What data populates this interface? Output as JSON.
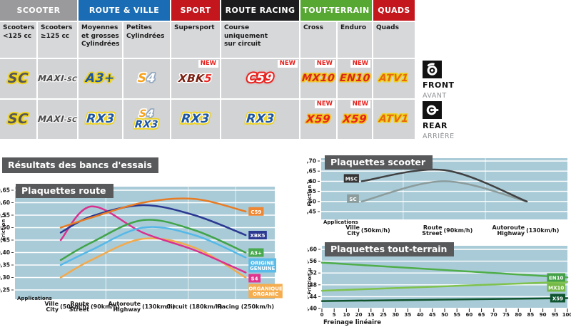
{
  "results_title": "Résultats des bancs d'essais",
  "colors": {
    "chart_bg": "#a9cbd7",
    "banner": "#58595b",
    "cell": "#d2d3d5",
    "subcell": "#d7d8da",
    "new_red": "#e8211d"
  },
  "table": {
    "categories": [
      {
        "label": "SCOOTER",
        "bg": "#9a9a9c",
        "span": 2
      },
      {
        "label": "ROUTE & VILLE",
        "bg": "#1a6cb4",
        "span": 2
      },
      {
        "label": "SPORT",
        "bg": "#c3161d",
        "span": 1
      },
      {
        "label": "ROUTE RACING",
        "bg": "#1c1c1e",
        "span": 1
      },
      {
        "label": "TOUT-TERRAIN",
        "bg": "#57a733",
        "span": 2
      },
      {
        "label": "QUADS",
        "bg": "#c3161d",
        "span": 1
      }
    ],
    "subheaders": [
      "Scooters\n<125 cc",
      "Scooters\n≥125 cc",
      "Moyennes\net grosses\nCylindrées",
      "Petites\nCylindrées",
      "Supersport",
      "Course\nuniquement\nsur circuit",
      "Cross",
      "Enduro",
      "Quads"
    ],
    "new_label": "NEW",
    "front_row": [
      {
        "badges": [
          {
            "text": "SC",
            "style": "b-sc"
          }
        ]
      },
      {
        "badges": [
          {
            "text": "MAXI-SC",
            "style": "b-maxisc",
            "parts": [
              {
                "t": "MAXI",
                "c": "p1"
              },
              {
                "t": "-SC",
                "c": "p2"
              }
            ]
          }
        ]
      },
      {
        "badges": [
          {
            "text": "A3+",
            "style": "b-a3"
          }
        ]
      },
      {
        "badges": [
          {
            "text": "S4",
            "style": "b-s4",
            "parts": [
              {
                "t": "S",
                "c": "p1"
              },
              {
                "t": "4",
                "c": "p2"
              }
            ]
          }
        ]
      },
      {
        "badges": [
          {
            "text": "XBK5",
            "style": "b-xbk5",
            "parts": [
              {
                "t": "XBK",
                "c": "p1"
              },
              {
                "t": "5",
                "c": "p2"
              }
            ]
          }
        ],
        "new": true
      },
      {
        "badges": [
          {
            "text": "C59",
            "style": "b-c59"
          }
        ],
        "new": true
      },
      {
        "badges": [
          {
            "text": "MX10",
            "style": "b-mx10"
          }
        ],
        "new": true
      },
      {
        "badges": [
          {
            "text": "EN10",
            "style": "b-en10"
          }
        ],
        "new": true
      },
      {
        "badges": [
          {
            "text": "ATV1",
            "style": "b-atv1"
          }
        ]
      }
    ],
    "rear_row": [
      {
        "badges": [
          {
            "text": "SC",
            "style": "b-sc"
          }
        ]
      },
      {
        "badges": [
          {
            "text": "MAXI-SC",
            "style": "b-maxisc",
            "parts": [
              {
                "t": "MAXI",
                "c": "p1"
              },
              {
                "t": "-SC",
                "c": "p2"
              }
            ]
          }
        ]
      },
      {
        "badges": [
          {
            "text": "RX3",
            "style": "b-rx3"
          }
        ]
      },
      {
        "badges": [
          {
            "text": "S4",
            "style": "b-s4",
            "parts": [
              {
                "t": "S",
                "c": "p1"
              },
              {
                "t": "4",
                "c": "p2"
              }
            ]
          },
          {
            "text": "RX3",
            "style": "b-rx3"
          }
        ]
      },
      {
        "badges": [
          {
            "text": "RX3",
            "style": "b-rx3"
          }
        ]
      },
      {
        "badges": [
          {
            "text": "RX3",
            "style": "b-rx3"
          }
        ]
      },
      {
        "badges": [
          {
            "text": "X59",
            "style": "b-x59"
          }
        ],
        "new": true
      },
      {
        "badges": [
          {
            "text": "X59",
            "style": "b-x59"
          }
        ],
        "new": true
      },
      {
        "badges": [
          {
            "text": "ATV1",
            "style": "b-atv1"
          }
        ]
      }
    ],
    "side": {
      "front": {
        "label": "FRONT",
        "sub": "AVANT",
        "icon": "brake-disc-front-icon"
      },
      "rear": {
        "label": "REAR",
        "sub": "ARRIÈRE",
        "icon": "brake-disc-rear-icon"
      }
    }
  },
  "chart_data": [
    {
      "type": "line",
      "title": "Plaquettes route",
      "ylabel": "Friction µ",
      "ylim": [
        0.25,
        0.65
      ],
      "grid": true,
      "legend_position": "right-of-lines",
      "yticks": [
        {
          "v": 0.65,
          "label": "0,65"
        },
        {
          "v": 0.6,
          "label": "0,60"
        },
        {
          "v": 0.55,
          "label": "0,55"
        },
        {
          "v": 0.5,
          "label": "0,50"
        },
        {
          "v": 0.45,
          "label": "0,45"
        },
        {
          "v": 0.4,
          "label": "0,40"
        },
        {
          "v": 0.35,
          "label": "0,35"
        },
        {
          "v": 0.3,
          "label": "0,30"
        },
        {
          "v": 0.25,
          "label": "0,25"
        }
      ],
      "x_axis_note": "Applications",
      "categories": [
        {
          "lines": [
            "Ville",
            "City"
          ],
          "speed": "(50km/h)"
        },
        {
          "lines": [
            "Route",
            "Street"
          ],
          "speed": "(90km/h)"
        },
        {
          "lines": [
            "Autoroute",
            "Highway"
          ],
          "speed": "(130km/h)"
        },
        {
          "lines": [
            "Circuit"
          ],
          "speed": "(180km/h)"
        },
        {
          "lines": [
            "Racing"
          ],
          "speed": "(250km/h)"
        }
      ],
      "series": [
        {
          "name": "C59",
          "color": "#e87c25",
          "label_bg": "#ef8632",
          "label_fg": "#ffffff",
          "values": [
            0.5,
            0.54,
            0.6,
            0.615,
            0.565
          ]
        },
        {
          "name": "XBK5",
          "color": "#2b3892",
          "label_bg": "#2b3892",
          "label_fg": "#ffffff",
          "values": [
            0.48,
            0.545,
            0.59,
            0.55,
            0.47
          ]
        },
        {
          "name": "A3+",
          "color": "#41a449",
          "label_bg": "#48a94e",
          "label_fg": "#ffffff",
          "values": [
            0.37,
            0.44,
            0.53,
            0.49,
            0.4
          ]
        },
        {
          "name": "ORIGINE\nGENUINE",
          "color": "#55b8e8",
          "label_bg": "#5cbce9",
          "label_fg": "#ffffff",
          "values": [
            0.35,
            0.41,
            0.5,
            0.47,
            0.38
          ]
        },
        {
          "name": "S4",
          "color": "#d9308f",
          "label_bg": "#e0348f",
          "label_fg": "#ffffff",
          "values": [
            0.45,
            0.585,
            0.48,
            0.41,
            0.32
          ]
        },
        {
          "name": "ORGANIQUE\nORGANIC",
          "color": "#f3a94d",
          "label_bg": "#f5ad4f",
          "label_fg": "#ffffff",
          "values": [
            0.3,
            0.37,
            0.455,
            0.42,
            0.3
          ]
        }
      ]
    },
    {
      "type": "line",
      "title": "Plaquettes scooter",
      "ylabel": "Friction µ",
      "ylim": [
        0.45,
        0.7
      ],
      "grid": true,
      "legend_position": "left-of-lines",
      "yticks": [
        {
          "v": 0.7,
          "label": "0,70"
        },
        {
          "v": 0.65,
          "label": "0,65"
        },
        {
          "v": 0.6,
          "label": "0,60"
        },
        {
          "v": 0.55,
          "label": "0,55"
        },
        {
          "v": 0.5,
          "label": "0,50"
        },
        {
          "v": 0.45,
          "label": "0,45"
        }
      ],
      "x_axis_note": "Applications",
      "categories": [
        {
          "lines": [
            "Ville",
            "City"
          ],
          "speed": "(50km/h)"
        },
        {
          "lines": [
            "Route",
            "Street"
          ],
          "speed": "(90km/h)"
        },
        {
          "lines": [
            "Autoroute",
            "Highway"
          ],
          "speed": "(130km/h)"
        }
      ],
      "series": [
        {
          "name": "MSC",
          "color": "#404041",
          "label_bg": "#333334",
          "label_fg": "#ffffff",
          "values": [
            0.6,
            0.655,
            0.5
          ]
        },
        {
          "name": "SC",
          "color": "#8c9c9c",
          "label_bg": "#8c9c9c",
          "label_fg": "#ffffff",
          "values": [
            0.5,
            0.6,
            0.5
          ]
        }
      ]
    },
    {
      "type": "line",
      "title": "Plaquettes tout-terrain",
      "ylabel": "Friction µ",
      "ylim": [
        0.4,
        0.6
      ],
      "grid": true,
      "legend_position": "right-of-lines",
      "yticks": [
        {
          "v": 0.6,
          "label": "0,60"
        },
        {
          "v": 0.56,
          "label": "0,56"
        },
        {
          "v": 0.52,
          "label": "0,52"
        },
        {
          "v": 0.48,
          "label": "0,48"
        },
        {
          "v": 0.44,
          "label": "0,44"
        },
        {
          "v": 0.4,
          "label": "0,40"
        }
      ],
      "xlabel": "Freinage linéaire",
      "x_range": [
        0,
        100
      ],
      "xticks": [
        "0",
        "5",
        "10",
        "20",
        "15",
        "25",
        "30",
        "35",
        "40",
        "45",
        "50",
        "55",
        "60",
        "65",
        "70",
        "75",
        "80",
        "85",
        "90",
        "95",
        "100"
      ],
      "series": [
        {
          "name": "EN10",
          "color": "#4fae4a",
          "label_bg": "#44a048",
          "label_fg": "#ffffff",
          "x": [
            0,
            100
          ],
          "values": [
            0.555,
            0.505
          ]
        },
        {
          "name": "MX10",
          "color": "#7fc24c",
          "label_bg": "#76b947",
          "label_fg": "#ffffff",
          "x": [
            0,
            100
          ],
          "values": [
            0.46,
            0.49
          ]
        },
        {
          "name": "X59",
          "color": "#0f532c",
          "label_bg": "#0e5430",
          "label_fg": "#ffffff",
          "x": [
            0,
            100
          ],
          "values": [
            0.425,
            0.435
          ]
        }
      ]
    }
  ]
}
